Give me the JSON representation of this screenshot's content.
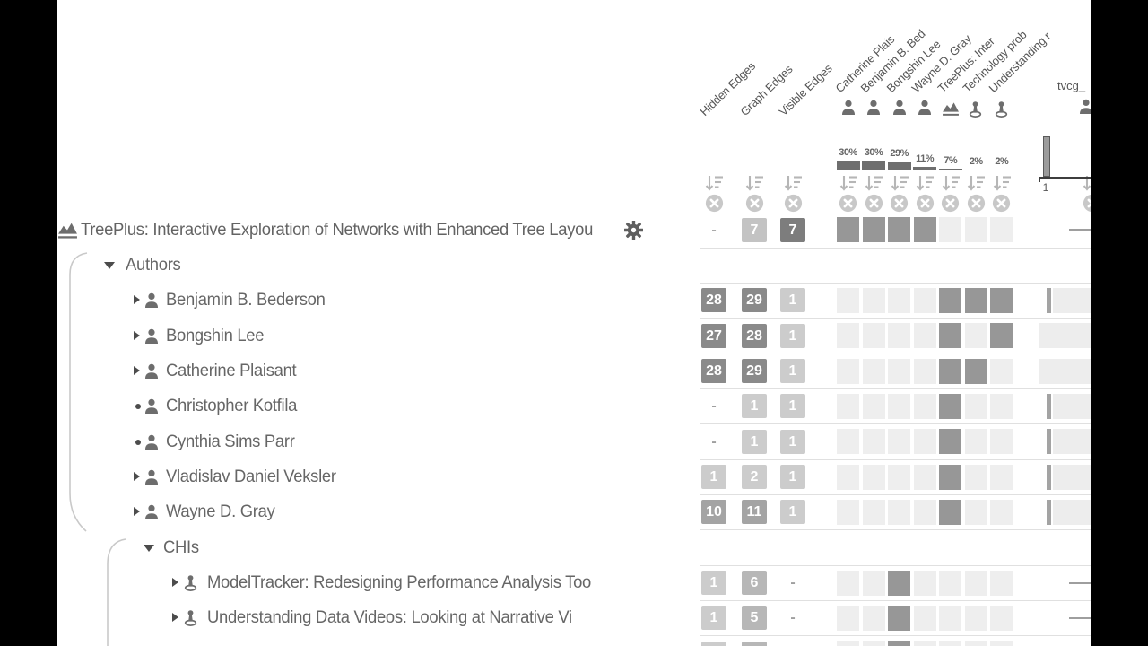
{
  "root": {
    "title": "TreePlus: Interactive Exploration of Networks with Enhanced Tree Layou",
    "gear_icon": "gear-icon",
    "icon": "area-chart-icon"
  },
  "columns": {
    "edge": [
      {
        "label": "Hidden Edges"
      },
      {
        "label": "Graph Edges"
      },
      {
        "label": "Visible Edges"
      }
    ],
    "matrix": [
      {
        "label": "Catherine Plais",
        "icon": "person-icon",
        "percent": "30%",
        "bar": 11
      },
      {
        "label": "Benjamin B. Bed",
        "icon": "person-icon",
        "percent": "30%",
        "bar": 11
      },
      {
        "label": "Bongshin Lee",
        "icon": "person-icon",
        "percent": "29%",
        "bar": 10
      },
      {
        "label": "Wayne D. Gray",
        "icon": "person-icon",
        "percent": "11%",
        "bar": 4
      },
      {
        "label": "TreePlus: Inter",
        "icon": "area-chart-icon",
        "percent": "7%",
        "bar": 2.5
      },
      {
        "label": "Technology prob",
        "icon": "pin-icon",
        "percent": "2%",
        "bar": 1.5
      },
      {
        "label": "Understanding r",
        "icon": "pin-icon",
        "percent": "2%",
        "bar": 1.5
      }
    ],
    "tvcg": {
      "label": "tvcg_",
      "icon": "person-icon",
      "axis_tick": "1"
    }
  },
  "colors": {
    "box_d1": "#7d7d7d",
    "box_d2": "#8a8a8a",
    "box_d3": "#a4a4a4",
    "box_d4": "#b7b7b7",
    "box_d5": "#c3c3c3",
    "box_d6": "#cccccc",
    "cell_dark": "#979797",
    "cell_light": "#eeeeee",
    "accent_bar": "#6e6e6e"
  },
  "rows": [
    {
      "label": "TreePlus: Interactive Exploration of Networks with Enhanced Tree Layou",
      "level": "root",
      "marker": "none",
      "icon": "area-chart-icon",
      "gear": true,
      "hidden": {
        "t": "-",
        "s": "dash"
      },
      "graph": {
        "t": "7",
        "s": "d5"
      },
      "visible": {
        "t": "7",
        "s": "d1"
      },
      "cells": [
        1,
        1,
        1,
        1,
        0,
        0,
        0
      ],
      "tvcg": "dash"
    },
    {
      "label": "Authors",
      "level": "l1",
      "marker": "down",
      "icon": null,
      "hidden": null,
      "graph": null,
      "visible": null,
      "cells": null,
      "tvcg": null
    },
    {
      "label": "Benjamin B. Bederson",
      "level": "l2",
      "marker": "right",
      "icon": "person-icon",
      "hidden": {
        "t": "28",
        "s": "d2"
      },
      "graph": {
        "t": "29",
        "s": "d2"
      },
      "visible": {
        "t": "1",
        "s": "d6"
      },
      "cells": [
        0,
        0,
        0,
        0,
        1,
        1,
        1
      ],
      "tvcg": "tickstrip"
    },
    {
      "label": "Bongshin Lee",
      "level": "l2",
      "marker": "right",
      "icon": "person-icon",
      "hidden": {
        "t": "27",
        "s": "d2"
      },
      "graph": {
        "t": "28",
        "s": "d2"
      },
      "visible": {
        "t": "1",
        "s": "d6"
      },
      "cells": [
        0,
        0,
        0,
        0,
        1,
        0,
        1
      ],
      "tvcg": "strip"
    },
    {
      "label": "Catherine Plaisant",
      "level": "l2",
      "marker": "right",
      "icon": "person-icon",
      "hidden": {
        "t": "28",
        "s": "d2"
      },
      "graph": {
        "t": "29",
        "s": "d2"
      },
      "visible": {
        "t": "1",
        "s": "d6"
      },
      "cells": [
        0,
        0,
        0,
        0,
        1,
        1,
        0
      ],
      "tvcg": "strip"
    },
    {
      "label": "Christopher Kotfila",
      "level": "l2",
      "marker": "dot",
      "icon": "person-icon",
      "hidden": {
        "t": "-",
        "s": "dash"
      },
      "graph": {
        "t": "1",
        "s": "d6"
      },
      "visible": {
        "t": "1",
        "s": "d6"
      },
      "cells": [
        0,
        0,
        0,
        0,
        1,
        0,
        0
      ],
      "tvcg": "tickstrip"
    },
    {
      "label": "Cynthia Sims Parr",
      "level": "l2",
      "marker": "dot",
      "icon": "person-icon",
      "hidden": {
        "t": "-",
        "s": "dash"
      },
      "graph": {
        "t": "1",
        "s": "d6"
      },
      "visible": {
        "t": "1",
        "s": "d6"
      },
      "cells": [
        0,
        0,
        0,
        0,
        1,
        0,
        0
      ],
      "tvcg": "tickstrip"
    },
    {
      "label": "Vladislav Daniel Veksler",
      "level": "l2",
      "marker": "right",
      "icon": "person-icon",
      "hidden": {
        "t": "1",
        "s": "d6"
      },
      "graph": {
        "t": "2",
        "s": "d6"
      },
      "visible": {
        "t": "1",
        "s": "d6"
      },
      "cells": [
        0,
        0,
        0,
        0,
        1,
        0,
        0
      ],
      "tvcg": "tickstrip"
    },
    {
      "label": "Wayne D. Gray",
      "level": "l2",
      "marker": "right",
      "icon": "person-icon",
      "hidden": {
        "t": "10",
        "s": "d3"
      },
      "graph": {
        "t": "11",
        "s": "d3"
      },
      "visible": {
        "t": "1",
        "s": "d6"
      },
      "cells": [
        0,
        0,
        0,
        0,
        1,
        0,
        0
      ],
      "tvcg": "tickstrip"
    },
    {
      "label": "CHIs",
      "level": "chis",
      "marker": "down",
      "icon": null,
      "hidden": null,
      "graph": null,
      "visible": null,
      "cells": null,
      "tvcg": null
    },
    {
      "label": "ModelTracker: Redesigning Performance Analysis Too",
      "level": "l3",
      "marker": "right",
      "icon": "pin-icon",
      "hidden": {
        "t": "1",
        "s": "d6"
      },
      "graph": {
        "t": "6",
        "s": "d4"
      },
      "visible": {
        "t": "-",
        "s": "dash"
      },
      "cells": [
        0,
        0,
        1,
        0,
        0,
        0,
        0
      ],
      "tvcg": "dash"
    },
    {
      "label": "Understanding Data Videos: Looking at Narrative Vi",
      "level": "l3",
      "marker": "right",
      "icon": "pin-icon",
      "hidden": {
        "t": "1",
        "s": "d6"
      },
      "graph": {
        "t": "5",
        "s": "d4"
      },
      "visible": {
        "t": "-",
        "s": "dash"
      },
      "cells": [
        0,
        0,
        1,
        0,
        0,
        0,
        0
      ],
      "tvcg": "dash"
    },
    {
      "label": "",
      "level": "l3",
      "marker": "right",
      "icon": "pin-icon",
      "hidden": {
        "t": "",
        "s": "d6"
      },
      "graph": {
        "t": "",
        "s": "d4"
      },
      "visible": null,
      "cells": [
        0,
        0,
        1,
        0,
        0,
        0,
        0
      ],
      "tvcg": null
    }
  ]
}
